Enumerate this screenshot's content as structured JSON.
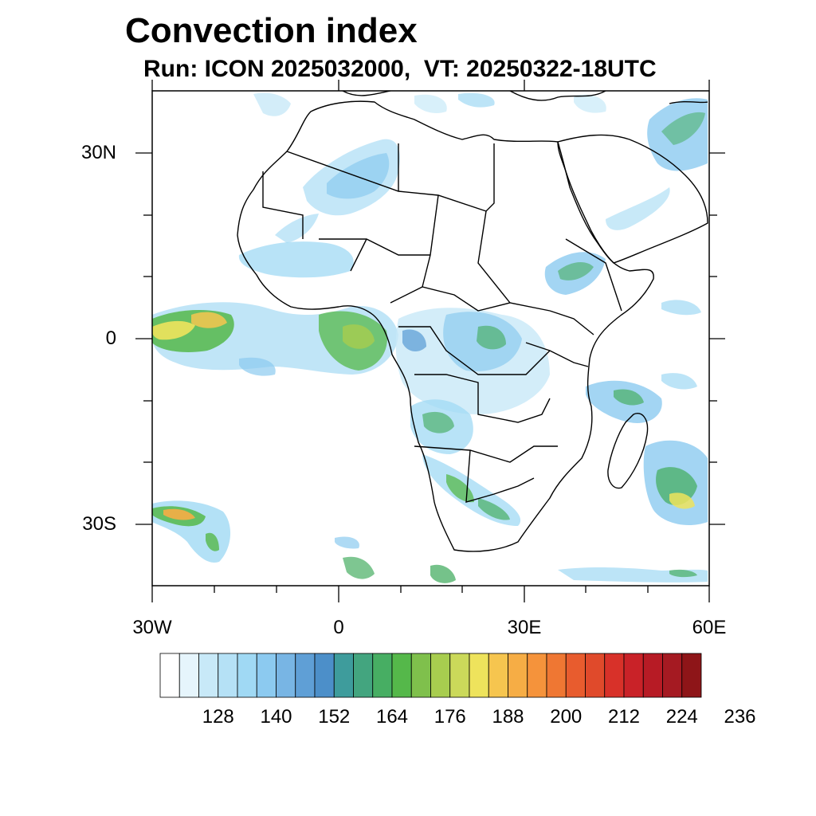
{
  "title": "Convection index",
  "subtitle": "Run: ICON 2025032000,  VT: 20250322-18UTC",
  "map": {
    "region": "Africa",
    "projection": "cylindrical equidistant",
    "lon_range": [
      -30,
      60
    ],
    "lat_range": [
      -40,
      40
    ],
    "lat_labels": [
      "30N",
      "0",
      "30S"
    ],
    "lon_labels": [
      "30W",
      "0",
      "30E",
      "60E"
    ]
  },
  "colorbar": {
    "labels": [
      "128",
      "140",
      "152",
      "164",
      "176",
      "188",
      "200",
      "212",
      "224",
      "236"
    ],
    "colors": [
      "#ffffff",
      "#e6f5fc",
      "#c8e9f8",
      "#b5e1f6",
      "#a0d9f4",
      "#8ccaf0",
      "#78b5e4",
      "#5f9fd6",
      "#4c8fc9",
      "#3e9c9c",
      "#43a57f",
      "#47ae63",
      "#55b84a",
      "#7fc04c",
      "#a8cd4f",
      "#cbd95a",
      "#eee35c",
      "#f6c54f",
      "#f6ad45",
      "#f5933b",
      "#ef7733",
      "#e85c2e",
      "#e04a2b",
      "#d83129",
      "#c92228",
      "#b71b25",
      "#a51a22",
      "#8e1518"
    ]
  }
}
